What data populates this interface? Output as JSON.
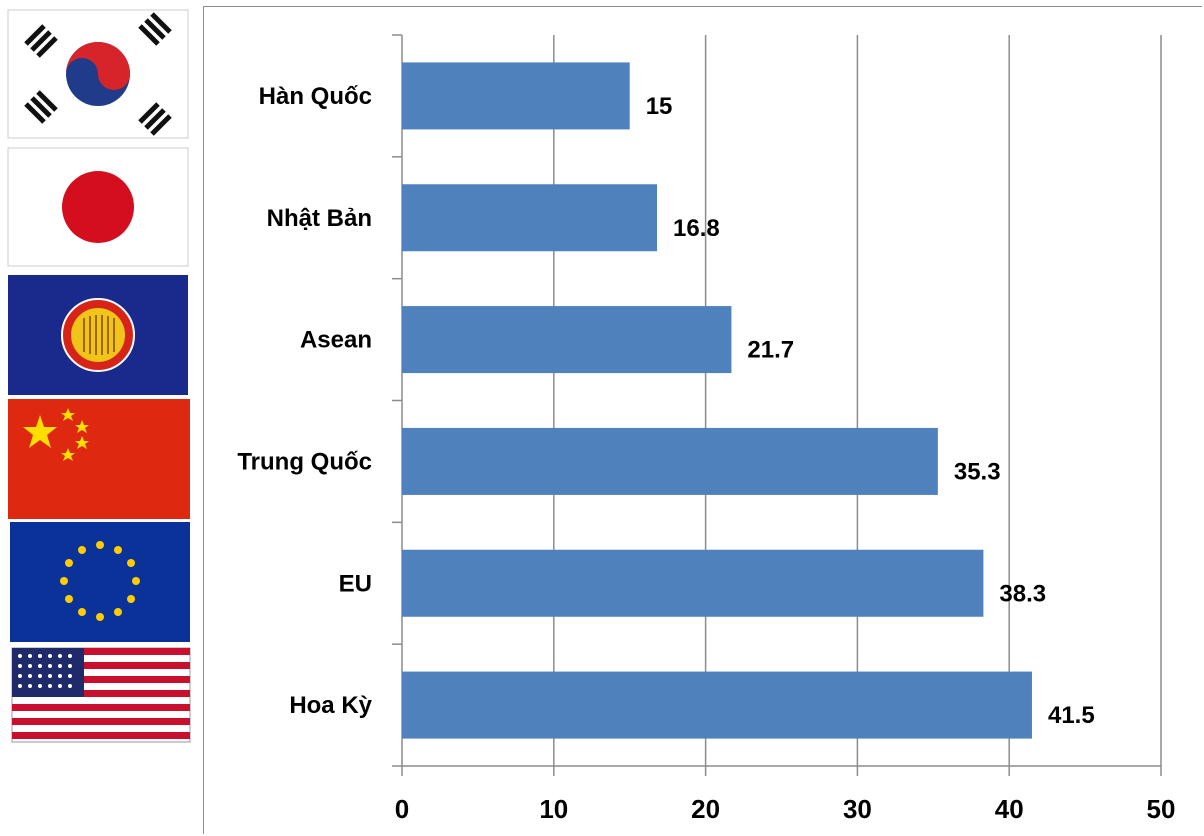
{
  "flags": [
    {
      "icon": "south-korea-flag-icon"
    },
    {
      "icon": "japan-flag-icon"
    },
    {
      "icon": "asean-flag-icon"
    },
    {
      "icon": "china-flag-icon"
    },
    {
      "icon": "eu-flag-icon"
    },
    {
      "icon": "usa-flag-icon"
    }
  ],
  "chart_data": {
    "type": "bar",
    "orientation": "horizontal",
    "categories": [
      "Hàn Quốc",
      "Nhật Bản",
      "Asean",
      "Trung Quốc",
      "EU",
      "Hoa Kỳ"
    ],
    "values": [
      15,
      16.8,
      21.7,
      35.3,
      38.3,
      41.5
    ],
    "value_labels": [
      "15",
      "16.8",
      "21.7",
      "35.3",
      "38.3",
      "41.5"
    ],
    "xlim": [
      0,
      50
    ],
    "xticks": [
      0,
      10,
      20,
      30,
      40,
      50
    ],
    "grid": "vertical",
    "bar_color": "#4f81bd",
    "gridline_color": "#8c8c8c"
  }
}
